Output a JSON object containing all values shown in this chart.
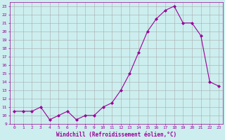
{
  "x": [
    0,
    1,
    2,
    3,
    4,
    5,
    6,
    7,
    8,
    9,
    10,
    11,
    12,
    13,
    14,
    15,
    16,
    17,
    18,
    19,
    20,
    21,
    22,
    23
  ],
  "y": [
    10.5,
    10.5,
    10.5,
    11.0,
    9.5,
    10.0,
    10.5,
    9.5,
    10.0,
    10.0,
    11.0,
    11.5,
    13.0,
    15.0,
    17.5,
    20.0,
    21.5,
    22.5,
    23.0,
    21.0,
    21.0,
    19.5,
    14.0,
    13.5
  ],
  "ylim": [
    9,
    23.5
  ],
  "xlim": [
    -0.5,
    23.5
  ],
  "line_color": "#990099",
  "marker": "D",
  "marker_size": 2,
  "bg_color": "#cceeee",
  "grid_color": "#aaaaaa",
  "xlabel": "Windchill (Refroidissement éolien,°C)",
  "yticks": [
    9,
    10,
    11,
    12,
    13,
    14,
    15,
    16,
    17,
    18,
    19,
    20,
    21,
    22,
    23
  ],
  "xticks": [
    0,
    1,
    2,
    3,
    4,
    5,
    6,
    7,
    8,
    9,
    10,
    11,
    12,
    13,
    14,
    15,
    16,
    17,
    18,
    19,
    20,
    21,
    22,
    23
  ],
  "font_color": "#990099",
  "font_family": "monospace",
  "tick_fontsize": 4.5,
  "xlabel_fontsize": 5.5
}
